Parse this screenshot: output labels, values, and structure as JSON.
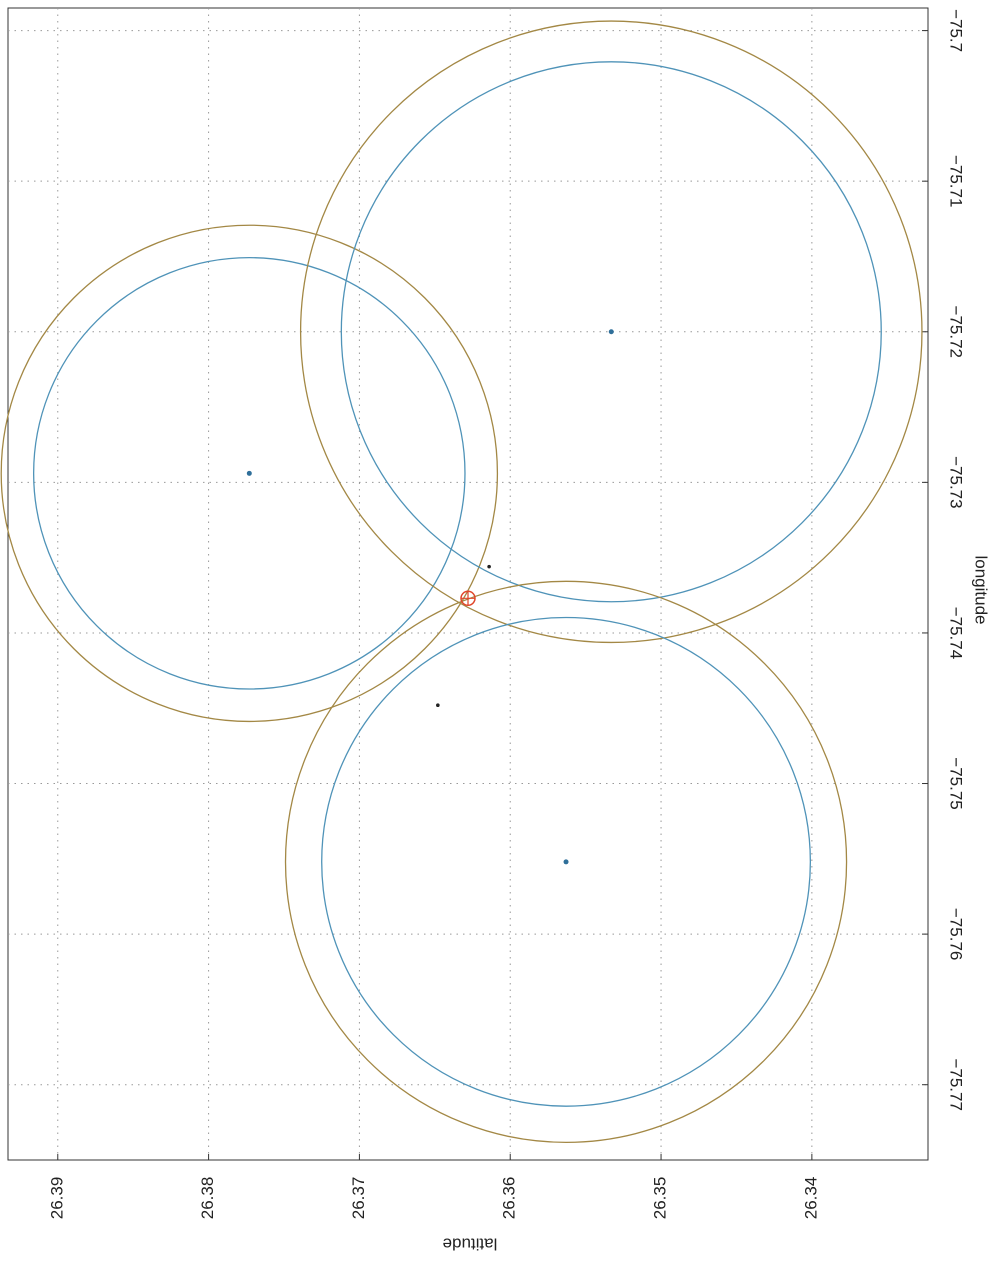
{
  "chart_data": {
    "type": "circles",
    "x_label": "latitude",
    "y_label": "longitude",
    "xlim": [
      26.3933,
      26.3323
    ],
    "ylim": [
      -75.6985,
      -75.775
    ],
    "xticks": [
      26.39,
      26.38,
      26.37,
      26.36,
      26.35,
      26.34
    ],
    "yticks": [
      {
        "value": -75.7,
        "label": "−75.7"
      },
      {
        "value": -75.71,
        "label": "−75.71"
      },
      {
        "value": -75.72,
        "label": "−75.72"
      },
      {
        "value": -75.73,
        "label": "−75.73"
      },
      {
        "value": -75.74,
        "label": "−75.74"
      },
      {
        "value": -75.75,
        "label": "−75.75"
      },
      {
        "value": -75.76,
        "label": "−75.76"
      },
      {
        "value": -75.77,
        "label": "−75.77"
      }
    ],
    "grid": true,
    "inner_color": "#4f93b8",
    "outer_color": "#a38845",
    "center_color": "#2f6f9a",
    "circles": [
      {
        "lat": 26.3773,
        "lon": -75.7294,
        "r_inner": 0.0143,
        "r_outer": 0.01645
      },
      {
        "lat": 26.3533,
        "lon": -75.72,
        "r_inner": 0.0179,
        "r_outer": 0.0206
      },
      {
        "lat": 26.3563,
        "lon": -75.7552,
        "r_inner": 0.0162,
        "r_outer": 0.0186
      }
    ],
    "estimate": {
      "lat": 26.3628,
      "lon": -75.7377,
      "color": "#e0462a"
    },
    "points": {
      "lat": [
        26.3614,
        26.3648
      ],
      "lon": [
        -75.7356,
        -75.7448
      ],
      "color": "#222222"
    }
  }
}
